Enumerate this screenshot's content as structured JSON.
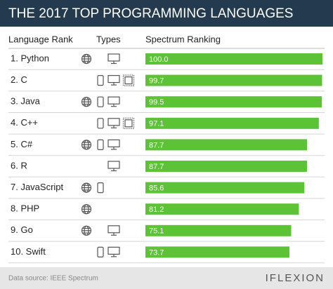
{
  "chart_data": {
    "type": "bar",
    "orientation": "horizontal",
    "title": "THE 2017 TOP PROGRAMMING LANGUAGES",
    "columns": [
      "Language Rank",
      "Types",
      "Spectrum Ranking"
    ],
    "categories": [
      "1. Python",
      "2. C",
      "3. Java",
      "4. C++",
      "5. C#",
      "6. R",
      "7. JavaScript",
      "8. PHP",
      "9. Go",
      "10. Swift"
    ],
    "values": [
      100.0,
      99.7,
      99.5,
      97.1,
      87.7,
      87.7,
      85.6,
      81.2,
      75.1,
      73.7
    ],
    "value_labels": [
      "100.0",
      "99.7",
      "99.5",
      "97.1",
      "87.7",
      "87.7",
      "85.6",
      "81.2",
      "75.1",
      "73.7"
    ],
    "color": "#5cc236",
    "xlim": [
      -41,
      100
    ]
  },
  "footer": {
    "source": "Data source: IEEE Spectrum",
    "logo": "IFLEXION"
  }
}
